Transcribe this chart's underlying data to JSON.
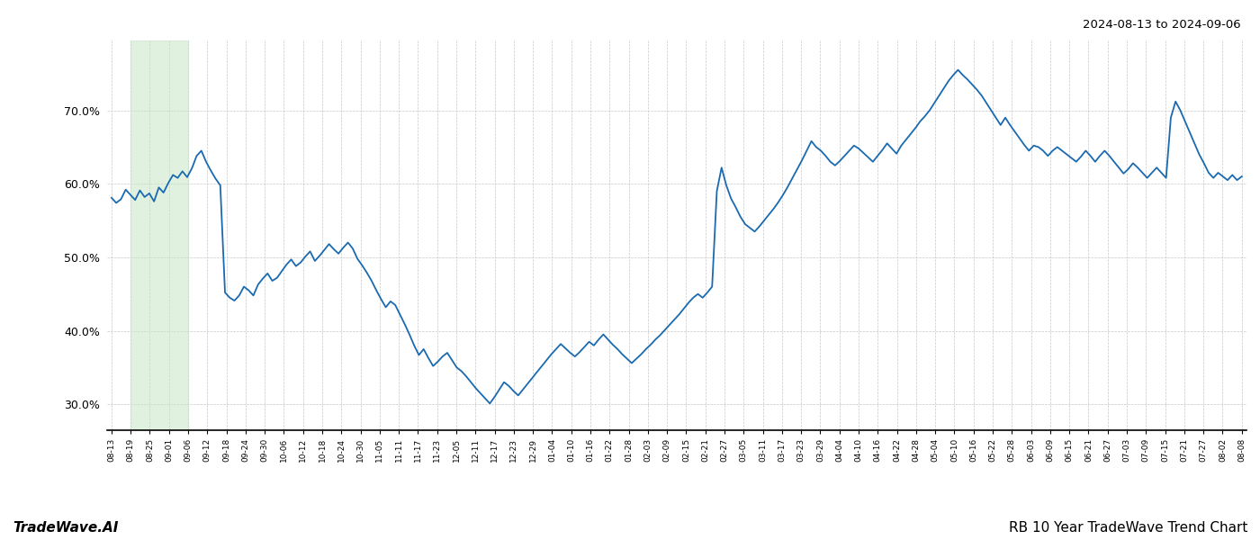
{
  "title_top_right": "2024-08-13 to 2024-09-06",
  "bottom_left": "TradeWave.AI",
  "bottom_right": "RB 10 Year TradeWave Trend Chart",
  "line_color": "#1a6ab0",
  "shade_color": "#c8e6c8",
  "shade_alpha": 0.55,
  "background_color": "#ffffff",
  "grid_color": "#c8c8c8",
  "ylim": [
    0.265,
    0.795
  ],
  "yticks": [
    0.3,
    0.4,
    0.5,
    0.6,
    0.7
  ],
  "x_labels": [
    "08-13",
    "08-19",
    "08-25",
    "09-01",
    "09-06",
    "09-12",
    "09-18",
    "09-24",
    "09-30",
    "10-06",
    "10-12",
    "10-18",
    "10-24",
    "10-30",
    "11-05",
    "11-11",
    "11-17",
    "11-23",
    "12-05",
    "12-11",
    "12-17",
    "12-23",
    "12-29",
    "01-04",
    "01-10",
    "01-16",
    "01-22",
    "01-28",
    "02-03",
    "02-09",
    "02-15",
    "02-21",
    "02-27",
    "03-05",
    "03-11",
    "03-17",
    "03-23",
    "03-29",
    "04-04",
    "04-10",
    "04-16",
    "04-22",
    "04-28",
    "05-04",
    "05-10",
    "05-16",
    "05-22",
    "05-28",
    "06-03",
    "06-09",
    "06-15",
    "06-21",
    "06-27",
    "07-03",
    "07-09",
    "07-15",
    "07-21",
    "07-27",
    "08-02",
    "08-08"
  ],
  "shade_start_label": "08-19",
  "shade_end_label": "09-06",
  "values": [
    0.581,
    0.574,
    0.579,
    0.592,
    0.585,
    0.578,
    0.591,
    0.582,
    0.587,
    0.576,
    0.595,
    0.588,
    0.601,
    0.612,
    0.608,
    0.617,
    0.609,
    0.621,
    0.638,
    0.645,
    0.63,
    0.618,
    0.607,
    0.598,
    0.452,
    0.445,
    0.441,
    0.448,
    0.46,
    0.455,
    0.448,
    0.463,
    0.471,
    0.478,
    0.468,
    0.472,
    0.481,
    0.49,
    0.497,
    0.488,
    0.493,
    0.501,
    0.508,
    0.495,
    0.502,
    0.51,
    0.518,
    0.511,
    0.505,
    0.513,
    0.52,
    0.512,
    0.498,
    0.489,
    0.479,
    0.468,
    0.455,
    0.443,
    0.432,
    0.44,
    0.435,
    0.422,
    0.409,
    0.395,
    0.38,
    0.367,
    0.375,
    0.363,
    0.352,
    0.358,
    0.365,
    0.37,
    0.36,
    0.35,
    0.345,
    0.338,
    0.33,
    0.322,
    0.315,
    0.308,
    0.301,
    0.31,
    0.32,
    0.33,
    0.325,
    0.318,
    0.312,
    0.32,
    0.328,
    0.336,
    0.344,
    0.352,
    0.36,
    0.368,
    0.375,
    0.382,
    0.376,
    0.37,
    0.365,
    0.371,
    0.378,
    0.385,
    0.38,
    0.388,
    0.395,
    0.388,
    0.381,
    0.375,
    0.368,
    0.362,
    0.356,
    0.362,
    0.368,
    0.375,
    0.381,
    0.388,
    0.394,
    0.401,
    0.408,
    0.415,
    0.422,
    0.43,
    0.438,
    0.445,
    0.45,
    0.445,
    0.452,
    0.46,
    0.59,
    0.622,
    0.598,
    0.58,
    0.568,
    0.555,
    0.545,
    0.54,
    0.535,
    0.542,
    0.55,
    0.558,
    0.566,
    0.575,
    0.585,
    0.596,
    0.608,
    0.62,
    0.632,
    0.645,
    0.658,
    0.65,
    0.645,
    0.638,
    0.63,
    0.625,
    0.631,
    0.638,
    0.645,
    0.652,
    0.648,
    0.642,
    0.636,
    0.63,
    0.638,
    0.646,
    0.655,
    0.648,
    0.641,
    0.652,
    0.66,
    0.668,
    0.676,
    0.685,
    0.692,
    0.7,
    0.71,
    0.72,
    0.73,
    0.74,
    0.748,
    0.755,
    0.748,
    0.742,
    0.735,
    0.728,
    0.72,
    0.71,
    0.7,
    0.69,
    0.68,
    0.69,
    0.68,
    0.671,
    0.662,
    0.653,
    0.645,
    0.652,
    0.65,
    0.645,
    0.638,
    0.645,
    0.65,
    0.645,
    0.64,
    0.635,
    0.63,
    0.637,
    0.645,
    0.638,
    0.63,
    0.638,
    0.645,
    0.638,
    0.63,
    0.622,
    0.614,
    0.62,
    0.628,
    0.622,
    0.615,
    0.608,
    0.615,
    0.622,
    0.615,
    0.608,
    0.69,
    0.712,
    0.7,
    0.685,
    0.67,
    0.655,
    0.64,
    0.628,
    0.615,
    0.608,
    0.615,
    0.61,
    0.605,
    0.612,
    0.605,
    0.61
  ]
}
